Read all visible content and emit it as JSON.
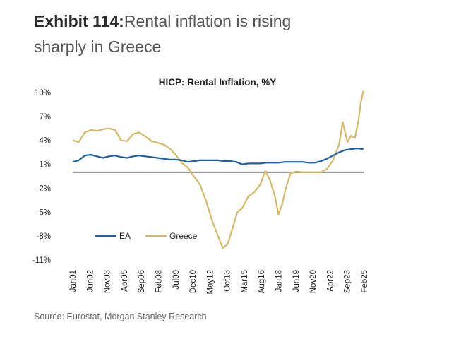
{
  "header": {
    "exhibit_label": "Exhibit 114:",
    "exhibit_text_line1": "Rental inflation is rising",
    "exhibit_text_line2": "sharply in Greece"
  },
  "footer": {
    "source": "Source: Eurostat, Morgan Stanley Research"
  },
  "chart_data": {
    "type": "line",
    "title": "HICP: Rental Inflation, %Y",
    "xlabel": "",
    "ylabel": "",
    "ylim": [
      -11,
      10
    ],
    "yticks": [
      10,
      7,
      4,
      1,
      -2,
      -5,
      -8,
      -11
    ],
    "ytick_labels": [
      "10%",
      "7%",
      "4%",
      "1%",
      "-2%",
      "-5%",
      "-8%",
      "-11%"
    ],
    "xlim": [
      2001.0,
      2025.083
    ],
    "xtick_labels": [
      "Jan01",
      "Jun02",
      "Nov03",
      "Apr05",
      "Sep06",
      "Feb08",
      "Jul09",
      "Dec10",
      "May12",
      "Oct13",
      "Mar15",
      "Aug16",
      "Jan18",
      "Jun19",
      "Nov20",
      "Apr22",
      "Sep23",
      "Feb25"
    ],
    "xtick_values": [
      2001.0,
      2002.417,
      2003.833,
      2005.25,
      2006.667,
      2008.083,
      2009.5,
      2010.917,
      2012.333,
      2013.75,
      2015.167,
      2016.583,
      2018.0,
      2019.417,
      2020.833,
      2022.25,
      2023.667,
      2025.083
    ],
    "zero_line": 0,
    "grid": false,
    "legend": "bottom-left",
    "series": [
      {
        "name": "EA",
        "color": "#1f5fa8",
        "x": [
          2001.0,
          2001.5,
          2002.0,
          2002.5,
          2003.0,
          2003.5,
          2004.0,
          2004.5,
          2005.0,
          2005.5,
          2006.0,
          2006.5,
          2007.0,
          2007.5,
          2008.0,
          2008.5,
          2009.0,
          2009.5,
          2010.0,
          2010.5,
          2011.0,
          2011.5,
          2012.0,
          2012.5,
          2013.0,
          2013.5,
          2014.0,
          2014.5,
          2015.0,
          2015.5,
          2016.0,
          2016.5,
          2017.0,
          2017.5,
          2018.0,
          2018.5,
          2019.0,
          2019.5,
          2020.0,
          2020.5,
          2021.0,
          2021.5,
          2022.0,
          2022.5,
          2023.0,
          2023.5,
          2024.0,
          2024.5,
          2025.0
        ],
        "y": [
          1.3,
          1.5,
          2.1,
          2.2,
          2.0,
          1.8,
          2.0,
          2.1,
          1.9,
          1.8,
          2.0,
          2.1,
          2.0,
          1.9,
          1.8,
          1.7,
          1.6,
          1.6,
          1.5,
          1.3,
          1.4,
          1.5,
          1.5,
          1.5,
          1.5,
          1.4,
          1.4,
          1.3,
          1.0,
          1.1,
          1.1,
          1.1,
          1.2,
          1.2,
          1.2,
          1.3,
          1.3,
          1.3,
          1.3,
          1.2,
          1.2,
          1.4,
          1.7,
          2.1,
          2.5,
          2.8,
          2.9,
          3.0,
          2.9
        ]
      },
      {
        "name": "Greece",
        "color": "#d4b96a",
        "x": [
          2001.0,
          2001.5,
          2002.0,
          2002.5,
          2003.0,
          2003.5,
          2004.0,
          2004.5,
          2005.0,
          2005.5,
          2006.0,
          2006.5,
          2007.0,
          2007.5,
          2008.0,
          2008.5,
          2009.0,
          2009.5,
          2010.0,
          2010.5,
          2011.0,
          2011.5,
          2012.0,
          2012.5,
          2013.0,
          2013.4,
          2013.8,
          2014.2,
          2014.6,
          2015.0,
          2015.5,
          2016.0,
          2016.5,
          2016.9,
          2017.3,
          2017.7,
          2018.0,
          2018.3,
          2018.6,
          2019.0,
          2019.5,
          2020.0,
          2020.5,
          2021.0,
          2021.5,
          2022.0,
          2022.5,
          2023.0,
          2023.3,
          2023.5,
          2023.7,
          2024.0,
          2024.3,
          2024.6,
          2024.8,
          2025.0
        ],
        "y": [
          4.0,
          3.8,
          5.0,
          5.3,
          5.2,
          5.4,
          5.5,
          5.3,
          4.0,
          3.9,
          4.8,
          5.0,
          4.5,
          3.9,
          3.7,
          3.5,
          3.0,
          2.2,
          1.2,
          0.6,
          -0.5,
          -1.5,
          -3.5,
          -6.0,
          -8.0,
          -9.5,
          -9.0,
          -7.0,
          -5.0,
          -4.5,
          -3.0,
          -2.5,
          -1.5,
          0.2,
          -1.0,
          -3.0,
          -5.3,
          -4.0,
          -2.0,
          -0.1,
          0.1,
          0.0,
          0.0,
          0.0,
          0.0,
          0.4,
          1.5,
          3.5,
          6.3,
          5.0,
          3.8,
          4.6,
          4.3,
          6.5,
          8.8,
          10.2
        ]
      }
    ]
  }
}
